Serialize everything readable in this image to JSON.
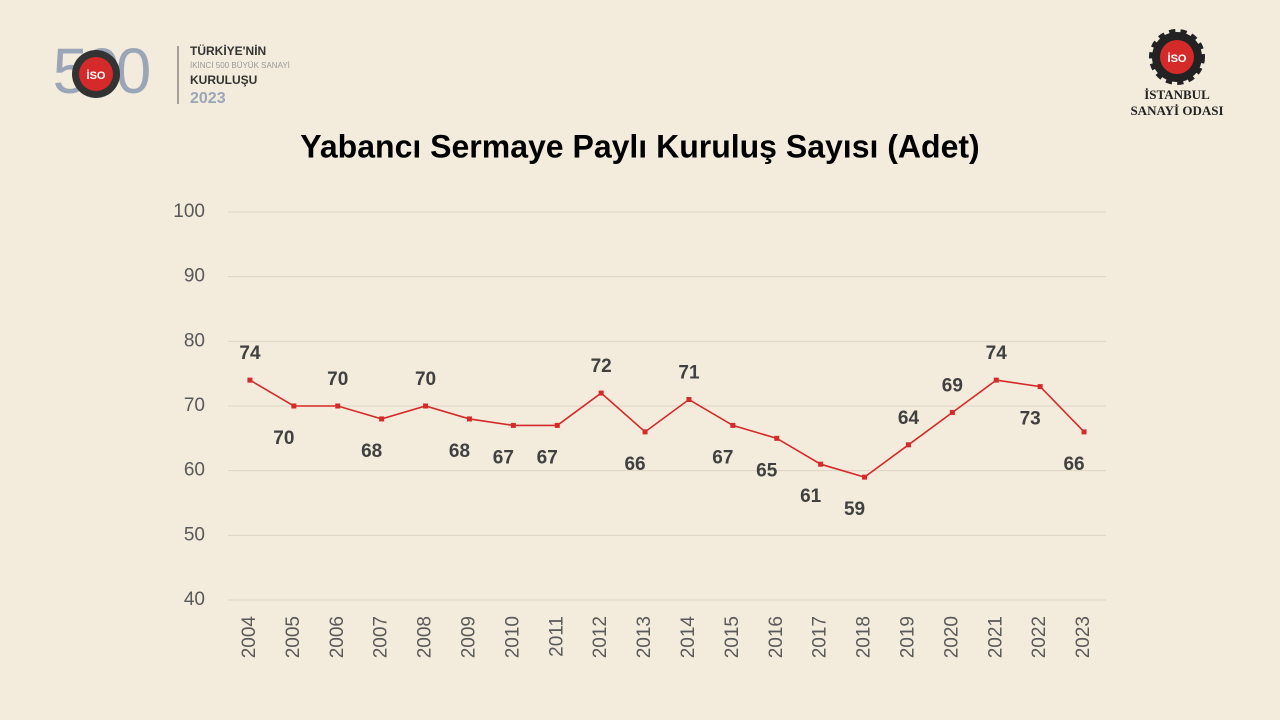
{
  "header": {
    "logo_left": {
      "number": "500",
      "badge": "İSO",
      "line1": "TÜRKİYE'NİN",
      "line2": "İKİNCİ 500 BÜYÜK SANAYİ",
      "line3": "KURULUŞU",
      "year": "2023"
    },
    "logo_right": {
      "badge": "İSO",
      "line1": "İSTANBUL",
      "line2": "SANAYİ ODASI"
    }
  },
  "chart_data": {
    "type": "line",
    "title": "Yabancı Sermaye Paylı Kuruluş Sayısı (Adet)",
    "categories": [
      "2004",
      "2005",
      "2006",
      "2007",
      "2008",
      "2009",
      "2010",
      "2011",
      "2012",
      "2013",
      "2014",
      "2015",
      "2016",
      "2017",
      "2018",
      "2019",
      "2020",
      "2021",
      "2022",
      "2023"
    ],
    "values": [
      74,
      70,
      70,
      68,
      70,
      68,
      67,
      67,
      72,
      66,
      71,
      67,
      65,
      61,
      59,
      64,
      69,
      74,
      73,
      66
    ],
    "color": "#d42a2a",
    "ylim": [
      40,
      100
    ],
    "yticks": [
      40,
      50,
      60,
      70,
      80,
      90,
      100
    ],
    "grid": true
  }
}
